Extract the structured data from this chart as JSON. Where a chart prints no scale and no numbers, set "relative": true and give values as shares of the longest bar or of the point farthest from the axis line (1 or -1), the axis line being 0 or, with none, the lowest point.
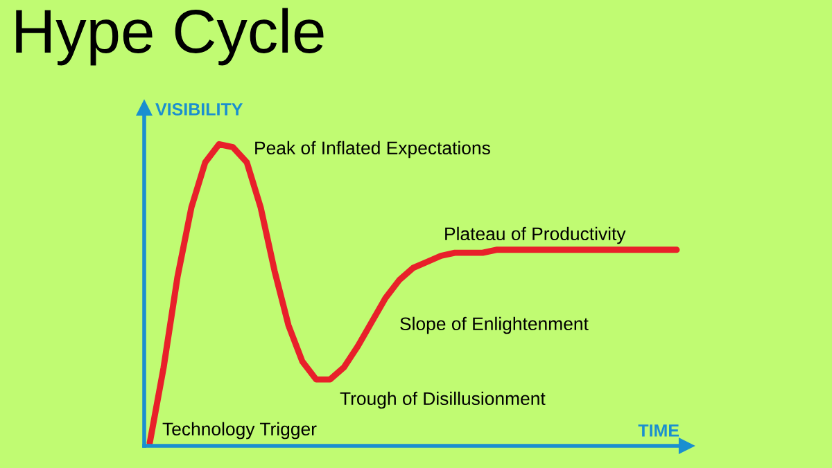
{
  "chart_data": {
    "type": "line",
    "title": "Hype Cycle",
    "xlabel": "TIME",
    "ylabel": "VISIBILITY",
    "relative": true,
    "categories": [
      null,
      null,
      null,
      null,
      null,
      null,
      null,
      null,
      null,
      null,
      null,
      null,
      null,
      null,
      null,
      null,
      null,
      null,
      null,
      null,
      null,
      null,
      null,
      null,
      null,
      null,
      null,
      null,
      null,
      null,
      null,
      null,
      null,
      null,
      null,
      null,
      null,
      null,
      null
    ],
    "series": [
      {
        "color": "#e8202a",
        "values": [
          0.01,
          0.26,
          0.56,
          0.79,
          0.94,
          1.0,
          0.99,
          0.94,
          0.79,
          0.58,
          0.4,
          0.28,
          0.22,
          0.22,
          0.26,
          0.33,
          0.41,
          0.49,
          0.55,
          0.59,
          0.61,
          0.63,
          0.64,
          0.64,
          0.64,
          0.65,
          0.65,
          0.65,
          0.65,
          0.65,
          0.65,
          0.65,
          0.65,
          0.65,
          0.65,
          0.65,
          0.65,
          0.65,
          0.65
        ]
      }
    ],
    "annotations": [
      "Peak of Inflated Expectations",
      "Plateau of Productivity",
      "Slope of Enlightenment",
      "Trough of Disillusionment",
      "Technology Trigger"
    ],
    "legend": false,
    "marker": "none",
    "line_style": "solid"
  }
}
